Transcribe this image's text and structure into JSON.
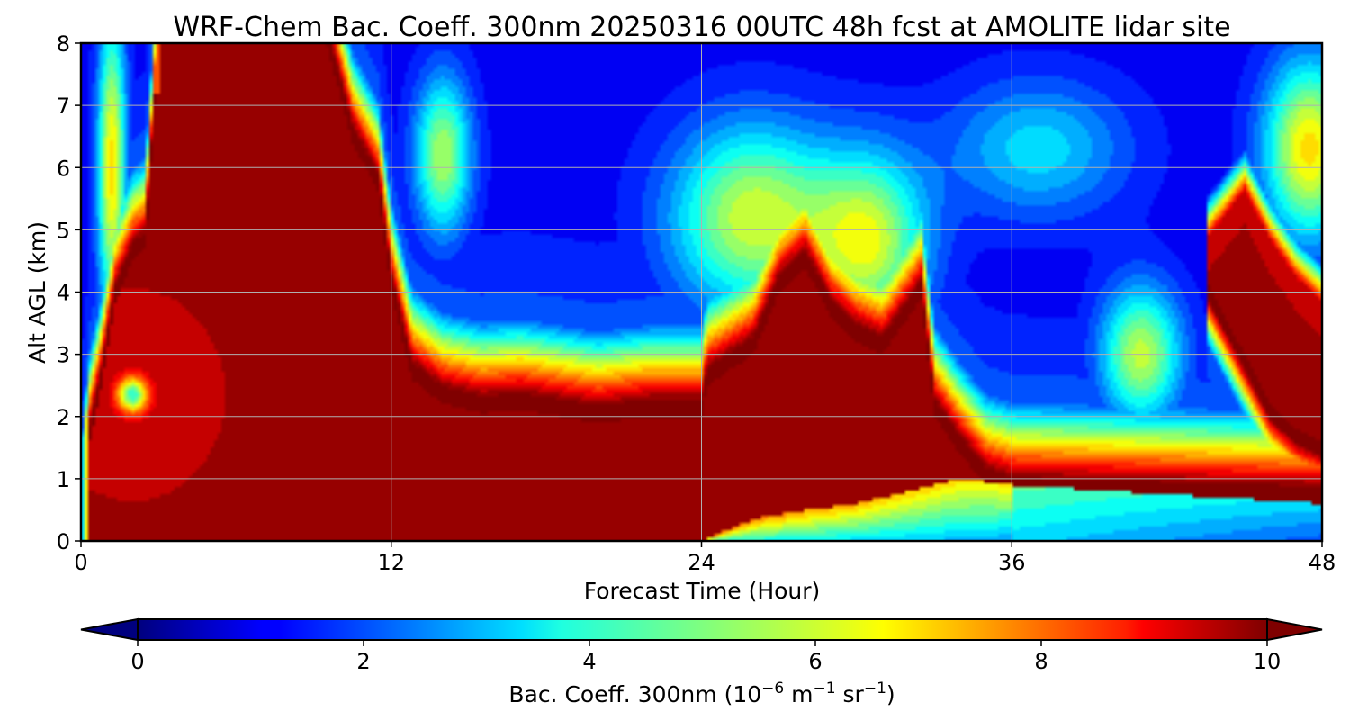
{
  "chart_data": {
    "type": "heatmap",
    "title": "WRF-Chem Bac. Coeff. 300nm  20250316 00UTC 48h fcst at AMOLITE lidar site",
    "xlabel": "Forecast Time (Hour)",
    "ylabel": "Alt AGL (km)",
    "xlim": [
      0,
      48
    ],
    "ylim": [
      0,
      8
    ],
    "x_ticks": [
      0,
      12,
      24,
      36,
      48
    ],
    "y_ticks": [
      0,
      1,
      2,
      3,
      4,
      5,
      6,
      7,
      8
    ],
    "grid": true,
    "colormap": "jet",
    "colorbar": {
      "orientation": "horizontal",
      "placement": "bottom",
      "min": -0.5,
      "max": 10.5,
      "ticks": [
        0,
        2,
        4,
        6,
        8,
        10
      ],
      "extend": "both",
      "label_main": "Bac. Coeff. 300nm  (10",
      "label_exp1": "−6",
      "label_mid": " m",
      "label_exp2": "−1",
      "label_mid2": " sr",
      "label_exp3": "−1",
      "label_end": ")"
    },
    "features": [
      {
        "name": "lowlevel-plume-day1",
        "x_range": [
          0,
          12
        ],
        "z_range": [
          0,
          8
        ],
        "value_max": 10
      },
      {
        "name": "boundary-layer-aerosol",
        "x_range": [
          12,
          24
        ],
        "z_range": [
          0,
          2.1
        ],
        "value_max": 10
      },
      {
        "name": "elevated-layer-day2",
        "x_range": [
          24,
          34
        ],
        "z_range": [
          0.8,
          4.5
        ],
        "value_max": 10
      },
      {
        "name": "upper-plume-late",
        "x_range": [
          44,
          48
        ],
        "z_range": [
          1.6,
          5.8
        ],
        "value_max": 10
      },
      {
        "name": "clean-midlevel-air",
        "x_range": [
          13,
          44
        ],
        "z_range": [
          4,
          8
        ],
        "value_max": 3
      }
    ]
  }
}
